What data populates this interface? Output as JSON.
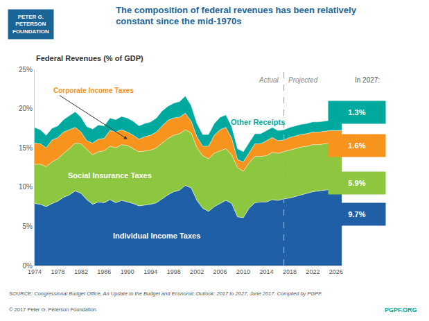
{
  "chart_data": {
    "type": "area",
    "stacked": true,
    "grid": false,
    "title": "The composition of federal revenues has been relatively\nconstant since the mid-1970s",
    "ylabel": "Federal Revenues (% of GDP)",
    "x": [
      1974,
      1975,
      1976,
      1977,
      1978,
      1979,
      1980,
      1981,
      1982,
      1983,
      1984,
      1985,
      1986,
      1987,
      1988,
      1989,
      1990,
      1991,
      1992,
      1993,
      1994,
      1995,
      1996,
      1997,
      1998,
      1999,
      2000,
      2001,
      2002,
      2003,
      2004,
      2005,
      2006,
      2007,
      2008,
      2009,
      2010,
      2011,
      2012,
      2013,
      2014,
      2015,
      2016,
      2017,
      2018,
      2019,
      2020,
      2021,
      2022,
      2023,
      2024,
      2025,
      2026,
      2027
    ],
    "series": [
      {
        "name": "Individual Income Taxes",
        "color": "#1f5fa6",
        "end_label": "9.7%",
        "values": [
          7.9,
          7.8,
          7.5,
          7.9,
          8.2,
          8.7,
          9.0,
          9.5,
          9.2,
          8.4,
          7.8,
          8.1,
          8.0,
          8.4,
          8.0,
          8.3,
          8.1,
          7.9,
          7.6,
          7.7,
          7.8,
          8.0,
          8.5,
          9.0,
          9.4,
          9.6,
          10.2,
          9.9,
          8.3,
          7.3,
          6.9,
          7.5,
          7.9,
          8.3,
          7.9,
          6.2,
          6.1,
          7.3,
          8.0,
          8.1,
          8.1,
          8.4,
          8.3,
          8.5,
          8.6,
          8.8,
          9.0,
          9.2,
          9.4,
          9.5,
          9.6,
          9.7,
          9.7,
          9.7
        ]
      },
      {
        "name": "Social Insurance Taxes",
        "color": "#8dc63f",
        "end_label": "5.9%",
        "values": [
          5.0,
          5.1,
          5.1,
          5.3,
          5.4,
          5.6,
          5.9,
          6.1,
          6.3,
          6.4,
          6.3,
          6.4,
          6.6,
          6.8,
          7.0,
          7.1,
          7.2,
          7.0,
          6.9,
          6.9,
          6.9,
          7.0,
          7.1,
          7.2,
          7.2,
          7.2,
          7.1,
          7.0,
          6.7,
          6.7,
          6.7,
          6.8,
          6.7,
          6.6,
          6.2,
          6.3,
          5.9,
          5.8,
          5.9,
          5.8,
          5.9,
          6.0,
          6.0,
          6.0,
          6.1,
          6.1,
          6.1,
          6.0,
          6.0,
          5.9,
          5.9,
          5.9,
          5.9,
          5.9
        ]
      },
      {
        "name": "Corporate Income Taxes",
        "color": "#f7941d",
        "end_label": "1.6%",
        "values": [
          2.7,
          2.6,
          2.4,
          2.8,
          2.7,
          2.7,
          2.4,
          2.0,
          1.5,
          1.1,
          1.5,
          1.6,
          1.6,
          2.0,
          2.0,
          1.9,
          1.7,
          1.7,
          1.6,
          1.8,
          1.9,
          2.0,
          2.2,
          2.3,
          2.2,
          2.1,
          2.1,
          1.5,
          1.4,
          1.2,
          1.6,
          2.3,
          2.7,
          2.7,
          2.1,
          1.0,
          1.2,
          1.2,
          1.6,
          1.6,
          1.9,
          1.9,
          1.6,
          1.5,
          1.6,
          1.6,
          1.6,
          1.6,
          1.6,
          1.6,
          1.6,
          1.6,
          1.6,
          1.6
        ]
      },
      {
        "name": "Other Receipts",
        "color": "#00a99d",
        "end_label": "1.3%",
        "values": [
          2.0,
          1.8,
          1.6,
          1.5,
          1.5,
          1.6,
          1.8,
          2.0,
          1.9,
          1.8,
          1.8,
          1.8,
          1.6,
          1.6,
          1.6,
          1.7,
          1.8,
          1.8,
          1.7,
          1.7,
          1.7,
          1.8,
          1.9,
          1.8,
          1.9,
          2.0,
          2.2,
          2.0,
          1.7,
          1.5,
          1.5,
          1.5,
          1.6,
          1.6,
          1.5,
          1.4,
          1.3,
          1.3,
          1.3,
          1.3,
          1.3,
          1.3,
          1.3,
          1.3,
          1.3,
          1.3,
          1.3,
          1.3,
          1.3,
          1.3,
          1.3,
          1.3,
          1.3,
          1.3
        ]
      }
    ],
    "xlim": [
      1974,
      2027
    ],
    "xticks": [
      1974,
      1978,
      1982,
      1986,
      1990,
      1994,
      1998,
      2002,
      2006,
      2010,
      2014,
      2018,
      2022,
      2026
    ],
    "ylim": [
      0,
      25
    ],
    "yticks": [
      {
        "value": 0,
        "label": "0%"
      },
      {
        "value": 5,
        "label": "5%"
      },
      {
        "value": 10,
        "label": "10%"
      },
      {
        "value": 15,
        "label": "15%"
      },
      {
        "value": 20,
        "label": "20%"
      },
      {
        "value": 25,
        "label": "25%"
      }
    ],
    "split_x": 2017,
    "annotations": {
      "actual": "Actual",
      "projected": "Projected",
      "in_2027": "In 2027:",
      "logo": "PETER G.\nPETERSON\nFOUNDATION",
      "source": "SOURCE: Congressional Budget Office, An Update to the Budget and Economic Outlook: 2017 to 2027, June 2017. Compiled by PGPF.",
      "copyright": "© 2017 Peter G. Peterson Foundation",
      "site": "PGPF.ORG"
    }
  }
}
